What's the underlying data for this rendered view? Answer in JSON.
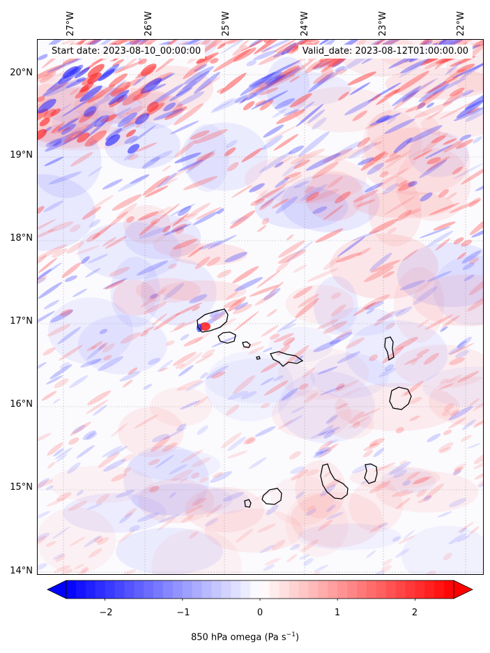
{
  "map": {
    "info_left": "Start date: 2023-08-10_00:00:00",
    "info_right": "Valid_date: 2023-08-12T01:00:00.00",
    "lat_labels": [
      "20°N",
      "19°N",
      "18°N",
      "17°N",
      "16°N",
      "15°N",
      "14°N"
    ],
    "lon_labels": [
      "27°W",
      "26°W",
      "25°W",
      "24°W",
      "23°W",
      "22°W"
    ],
    "grid": true,
    "coastline_color": "#000000"
  },
  "colorbar": {
    "label_prefix": "850 hPa omega (Pa s",
    "label_exponent": "−1",
    "label_suffix": ")",
    "ticks": [
      "−2",
      "−1",
      "0",
      "1",
      "2"
    ],
    "range": [
      -2.5,
      2.5
    ],
    "extend": "both",
    "cmap": "bwr",
    "color_min": "#0000ff",
    "color_mid": "#ffffff",
    "color_max": "#ff0000"
  }
}
